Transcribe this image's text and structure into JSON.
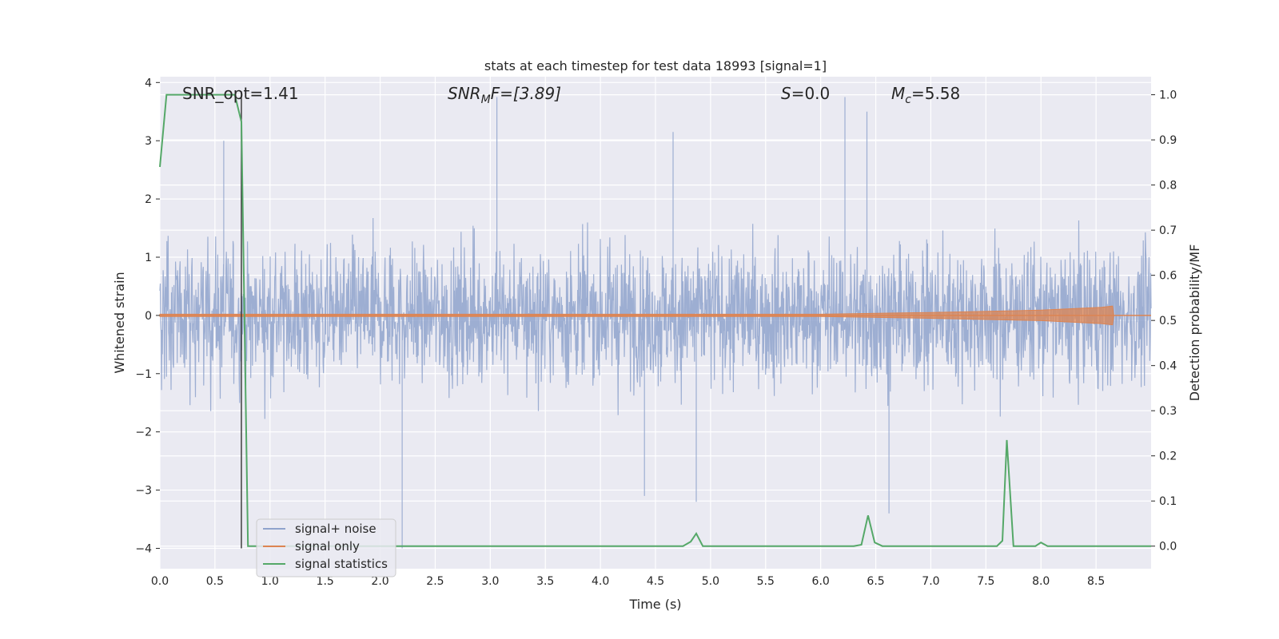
{
  "chart_data": {
    "type": "line",
    "title": "stats at each timestep for test data 18993 [signal=1]",
    "xlabel": "Time (s)",
    "ylabel_left": "Whitened strain",
    "ylabel_right": "Detection probability/MF",
    "xlim": [
      0.0,
      9.0
    ],
    "ylim_left": [
      -4.35,
      4.1
    ],
    "ylim_right": [
      -0.05,
      1.04
    ],
    "xticks": [
      "0.0",
      "0.5",
      "1.0",
      "1.5",
      "2.0",
      "2.5",
      "3.0",
      "3.5",
      "4.0",
      "4.5",
      "5.0",
      "5.5",
      "6.0",
      "6.5",
      "7.0",
      "7.5",
      "8.0",
      "8.5"
    ],
    "yticks_left": [
      "4",
      "3",
      "2",
      "1",
      "0",
      "−1",
      "−2",
      "−3",
      "−4"
    ],
    "yticks_right": [
      "1.0",
      "0.9",
      "0.8",
      "0.7",
      "0.6",
      "0.5",
      "0.4",
      "0.3",
      "0.2",
      "0.1",
      "0.0"
    ],
    "grid": true,
    "legend_position": "lower-left",
    "annotations": {
      "snr_opt": "SNR_opt=1.41",
      "snr_mf_sym": "SNR",
      "snr_mf_sub": "M",
      "snr_mf_rest": "F=[3.89]",
      "s_sym": "S",
      "s_rest": "=0.0",
      "mc_sym": "M",
      "mc_sub": "c",
      "mc_rest": "=5.58"
    },
    "marker_line_x": 0.74,
    "series": [
      {
        "name": "signal+ noise",
        "color": "#8fa3cc",
        "axis": "left",
        "description_values": {
          "typical_abs_max": 2.1,
          "spikes": [
            [
              0.58,
              3.0
            ],
            [
              3.06,
              3.75
            ],
            [
              6.22,
              3.75
            ],
            [
              6.42,
              3.5
            ],
            [
              4.66,
              3.15
            ],
            [
              2.2,
              -4.0
            ],
            [
              4.87,
              -3.2
            ],
            [
              6.62,
              -3.4
            ],
            [
              4.4,
              -3.1
            ]
          ]
        }
      },
      {
        "name": "signal only",
        "color": "#dd8452",
        "axis": "left",
        "envelope": [
          [
            0.0,
            0.02
          ],
          [
            6.0,
            0.02
          ],
          [
            7.0,
            0.05
          ],
          [
            8.0,
            0.09
          ],
          [
            8.55,
            0.14
          ],
          [
            8.65,
            0.16
          ],
          [
            8.66,
            0.0
          ]
        ]
      },
      {
        "name": "signal statistics",
        "color": "#55a868",
        "axis": "right",
        "x": [
          0.0,
          0.06,
          0.12,
          0.18,
          0.3,
          0.5,
          0.68,
          0.74,
          0.8,
          1.0,
          4.75,
          4.82,
          4.87,
          4.93,
          5.0,
          6.3,
          6.37,
          6.43,
          6.49,
          6.56,
          7.6,
          7.65,
          7.69,
          7.75,
          7.95,
          8.0,
          8.06,
          8.2,
          9.0
        ],
        "y": [
          0.84,
          1.0,
          1.0,
          1.0,
          1.0,
          1.0,
          1.0,
          0.94,
          0.0,
          0.0,
          0.0,
          0.01,
          0.028,
          0.0,
          0.0,
          0.0,
          0.003,
          0.068,
          0.008,
          0.0,
          0.0,
          0.012,
          0.235,
          0.0,
          0.0,
          0.008,
          0.0,
          0.0,
          0.0
        ]
      }
    ],
    "legend": [
      "signal+ noise",
      "signal only",
      "signal statistics"
    ]
  }
}
